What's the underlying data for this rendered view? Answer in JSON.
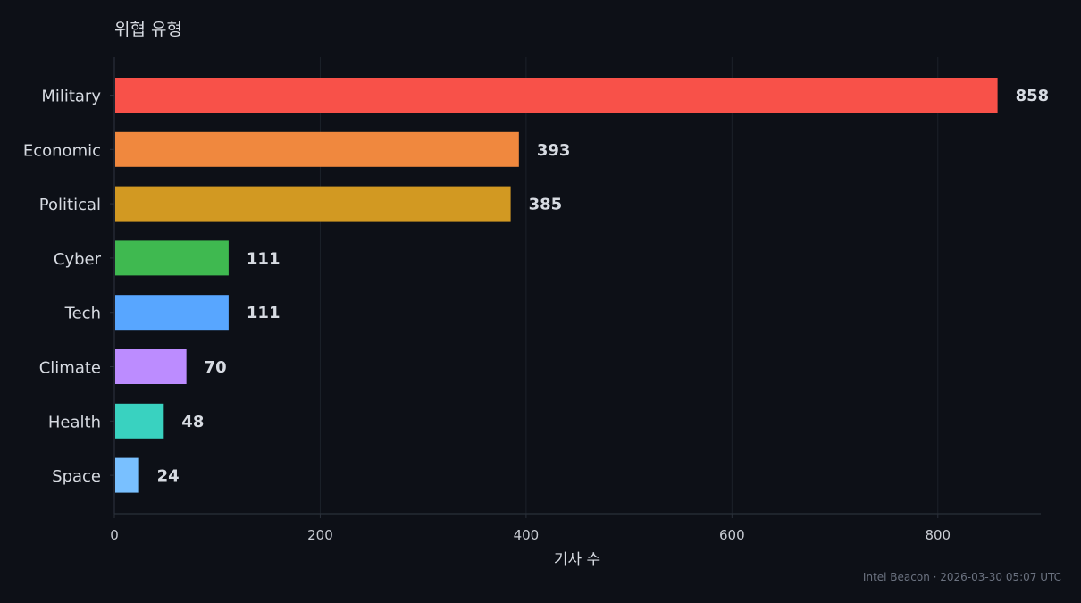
{
  "chart_data": {
    "type": "bar",
    "orientation": "horizontal",
    "title": "위협 유형",
    "xlabel": "기사 수",
    "ylabel": "",
    "xlim": [
      0,
      900
    ],
    "xticks": [
      0,
      200,
      400,
      600,
      800
    ],
    "grid": true,
    "categories": [
      "Military",
      "Economic",
      "Political",
      "Cyber",
      "Tech",
      "Climate",
      "Health",
      "Space"
    ],
    "values": [
      858,
      393,
      385,
      111,
      111,
      70,
      48,
      24
    ],
    "colors": [
      "#f85149",
      "#f0883e",
      "#d29922",
      "#3fb950",
      "#58a6ff",
      "#bc8cff",
      "#39d2c0",
      "#79c0ff"
    ]
  },
  "footer": "Intel Beacon · 2026-03-30 05:07 UTC",
  "theme": {
    "background": "#0d1017",
    "grid": "#1c2129",
    "axis": "#2a303a",
    "text": "#d7dbe2"
  }
}
